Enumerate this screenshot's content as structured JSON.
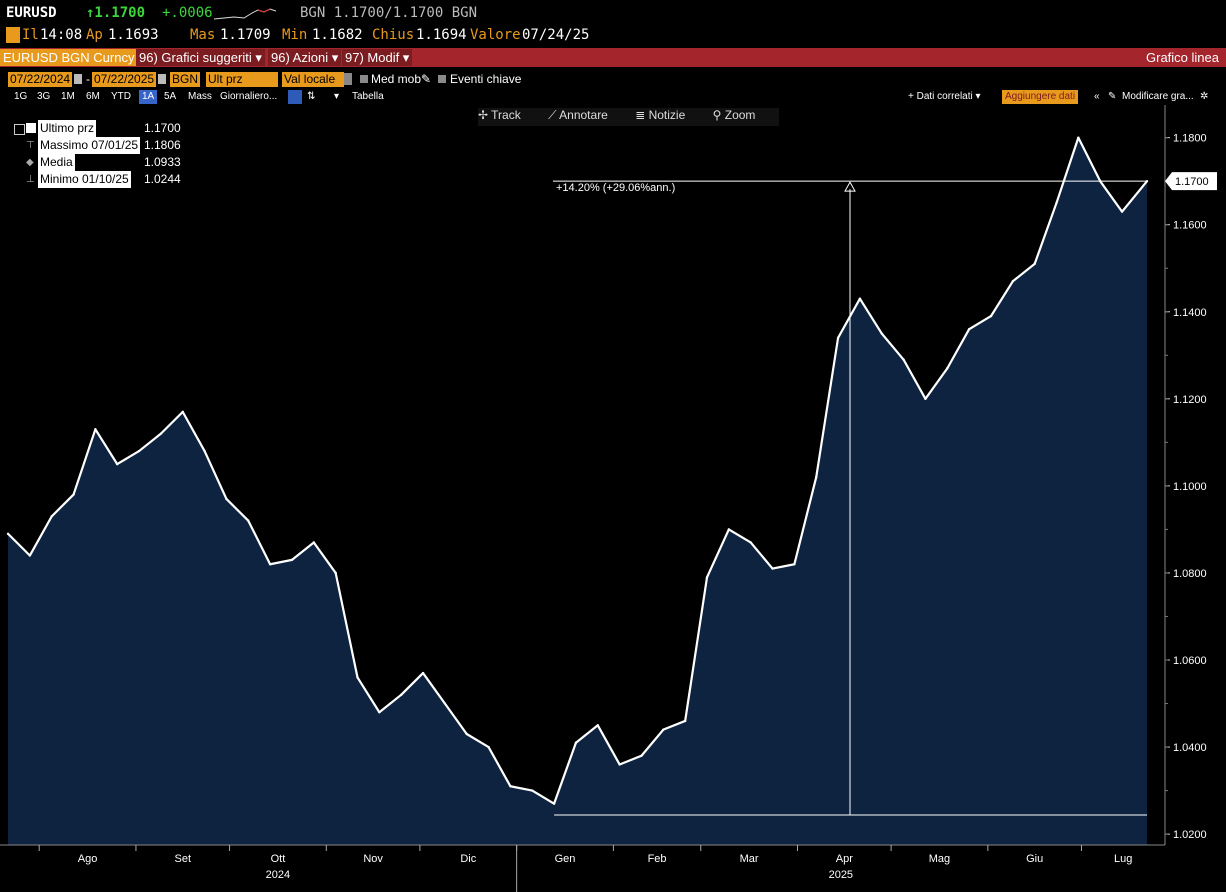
{
  "header": {
    "ticker": "EURUSD",
    "last": "↑1.1700",
    "change": "+.0006",
    "bid_ask": "BGN 1.1700/1.1700 BGN",
    "time_label": "Il",
    "time": "14:08",
    "open_label": "Ap",
    "open": "1.1693",
    "high_label": "Mas",
    "high": "1.1709",
    "low_label": "Min",
    "low": "1.1682",
    "close_label": "Chius",
    "close": "1.1694",
    "value_label": "Valore",
    "value": "07/24/25"
  },
  "toolbar": {
    "security": "EURUSD BGN Curncy",
    "suggested": "96) Grafici suggeriti ▾",
    "actions": "96) Azioni ▾",
    "modify": "97) Modif ▾",
    "title": "Grafico linea"
  },
  "controls": {
    "start_date": "07/22/2024",
    "end_date": "07/22/2025",
    "source": "BGN",
    "field": "Ult prz",
    "currency": "Val locale",
    "moving_avg": "Med mob",
    "key_events": "Eventi chiave",
    "ranges": [
      "1G",
      "3G",
      "1M",
      "6M",
      "YTD",
      "1A",
      "5A",
      "Mass"
    ],
    "active_range": "1A",
    "period": "Giornaliero...",
    "table": "Tabella",
    "related": "+ Dati correlati ▾",
    "add_data": "Aggiungere dati",
    "edit_chart": "Modificare gra..."
  },
  "chart_tools": {
    "track": "Track",
    "annotate": "Annotare",
    "news": "Notizie",
    "zoom": "Zoom"
  },
  "legend": [
    {
      "name": "Ultimo prz",
      "value": "1.1700"
    },
    {
      "name": "Massimo 07/01/25",
      "value": "1.1806"
    },
    {
      "name": "Media",
      "value": "1.0933"
    },
    {
      "name": "Minimo 01/10/25",
      "value": "1.0244"
    }
  ],
  "annotation": "+14.20% (+29.06%ann.)",
  "last_price_tag": "1.1700",
  "colors": {
    "fill": "#0e2340",
    "line": "#ffffff",
    "accent_red": "#a4262c",
    "accent_orange": "#e89a1c"
  },
  "chart_data": {
    "type": "area",
    "y_ticks": [
      "1.1800",
      "1.1600",
      "1.1400",
      "1.1200",
      "1.1000",
      "1.0800",
      "1.0600",
      "1.0400",
      "1.0200"
    ],
    "ylim": [
      1.0175,
      1.1875
    ],
    "x_months": [
      "Ago",
      "Set",
      "Ott",
      "Nov",
      "Dic",
      "Gen",
      "Feb",
      "Mar",
      "Apr",
      "Mag",
      "Giu",
      "Lug"
    ],
    "x_years": [
      "2024",
      "2025"
    ],
    "x": [
      "2024-07-22",
      "2024-07-29",
      "2024-08-05",
      "2024-08-12",
      "2024-08-19",
      "2024-08-26",
      "2024-09-02",
      "2024-09-09",
      "2024-09-16",
      "2024-09-23",
      "2024-09-30",
      "2024-10-07",
      "2024-10-14",
      "2024-10-21",
      "2024-10-28",
      "2024-11-04",
      "2024-11-11",
      "2024-11-18",
      "2024-11-25",
      "2024-12-02",
      "2024-12-09",
      "2024-12-16",
      "2024-12-23",
      "2024-12-30",
      "2025-01-06",
      "2025-01-13",
      "2025-01-20",
      "2025-01-27",
      "2025-02-03",
      "2025-02-10",
      "2025-02-17",
      "2025-02-24",
      "2025-03-03",
      "2025-03-10",
      "2025-03-17",
      "2025-03-24",
      "2025-03-31",
      "2025-04-07",
      "2025-04-14",
      "2025-04-21",
      "2025-04-28",
      "2025-05-05",
      "2025-05-12",
      "2025-05-19",
      "2025-05-26",
      "2025-06-02",
      "2025-06-09",
      "2025-06-16",
      "2025-06-23",
      "2025-06-30",
      "2025-07-07",
      "2025-07-14",
      "2025-07-22"
    ],
    "values": [
      1.089,
      1.084,
      1.093,
      1.098,
      1.113,
      1.105,
      1.108,
      1.112,
      1.117,
      1.108,
      1.097,
      1.092,
      1.082,
      1.083,
      1.087,
      1.08,
      1.056,
      1.048,
      1.052,
      1.057,
      1.05,
      1.043,
      1.04,
      1.031,
      1.03,
      1.027,
      1.041,
      1.045,
      1.036,
      1.038,
      1.044,
      1.046,
      1.079,
      1.09,
      1.087,
      1.081,
      1.082,
      1.102,
      1.134,
      1.143,
      1.135,
      1.129,
      1.12,
      1.127,
      1.136,
      1.139,
      1.147,
      1.151,
      1.165,
      1.18,
      1.17,
      1.163,
      1.17
    ],
    "high": {
      "date": "07/01/25",
      "value": 1.1806
    },
    "low": {
      "date": "01/10/25",
      "value": 1.0244
    },
    "average": 1.0933,
    "last": 1.17
  }
}
